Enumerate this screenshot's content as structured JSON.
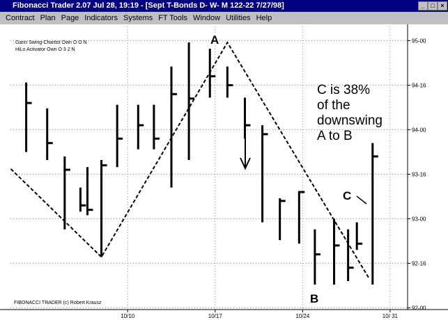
{
  "window": {
    "title": "Fibonacci Trader 2.07 Jul 28,  19:19 - [Sept T-Bonds D- W- M  122-22 7/27/98]",
    "menu": [
      "Contract",
      "Plan",
      "Page",
      "Indicators",
      "Systems",
      "FT Tools",
      "Window",
      "Utilities",
      "Help"
    ]
  },
  "chart_data": {
    "type": "ohlc",
    "legend": [
      "Gann Swing-Chartist Own O O N",
      "HiLo Activator Own O 3 2 N"
    ],
    "footer": "FIBONACCI TRADER (c) Robert Krausz",
    "x": [
      1.2,
      2.4,
      3.4,
      4.3,
      4.7,
      5.5,
      6.4,
      7.6,
      8.5,
      9.5,
      10.5,
      11.7,
      12.7,
      13.7,
      14.7,
      15.7,
      16.8,
      17.7,
      18.8,
      19.6,
      20.1,
      21.0
    ],
    "high": [
      94.53,
      94.24,
      93.7,
      93.35,
      93.58,
      93.66,
      94.28,
      94.28,
      94.28,
      94.71,
      94.98,
      94.91,
      94.71,
      94.36,
      94.05,
      93.23,
      93.31,
      92.88,
      93.0,
      92.88,
      92.96,
      93.85
    ],
    "low": [
      93.75,
      93.66,
      92.88,
      93.08,
      93.04,
      92.57,
      93.58,
      93.78,
      93.78,
      93.35,
      93.66,
      94.36,
      94.36,
      93.9,
      92.96,
      92.76,
      92.72,
      92.26,
      92.26,
      92.3,
      92.65,
      92.26
    ],
    "close": [
      94.3,
      93.85,
      93.55,
      93.15,
      93.1,
      93.6,
      93.9,
      94.05,
      93.9,
      94.4,
      94.35,
      94.6,
      94.5,
      94.05,
      93.95,
      93.2,
      93.3,
      92.6,
      92.7,
      92.45,
      92.72,
      93.7
    ],
    "swing": {
      "x": [
        0.32,
        5.5,
        12.7,
        20.8
      ],
      "values": [
        93.56,
        92.57,
        94.98,
        92.33
      ]
    },
    "labels": [
      "A",
      "B",
      "C"
    ],
    "note": [
      "C is 38%",
      "of the",
      "downswing",
      "A to B"
    ],
    "xlim": [
      0.3,
      23
    ],
    "ylim": [
      91.98,
      95.16
    ],
    "xticks": [
      {
        "value": 7,
        "label": "10/10"
      },
      {
        "value": 12,
        "label": "10/17"
      },
      {
        "value": 17,
        "label": "10/24"
      },
      {
        "value": 22,
        "label": "10/ 31"
      }
    ],
    "yticks": [
      {
        "value": 95,
        "label": "95-00"
      },
      {
        "value": 94.5,
        "label": "94-16"
      },
      {
        "value": 94,
        "label": "94-00"
      },
      {
        "value": 93.5,
        "label": "93-16"
      },
      {
        "value": 93,
        "label": "93-00"
      },
      {
        "value": 92.5,
        "label": "92-16"
      },
      {
        "value": 92,
        "label": "92-00"
      }
    ],
    "grid": true,
    "color": "#000000"
  }
}
